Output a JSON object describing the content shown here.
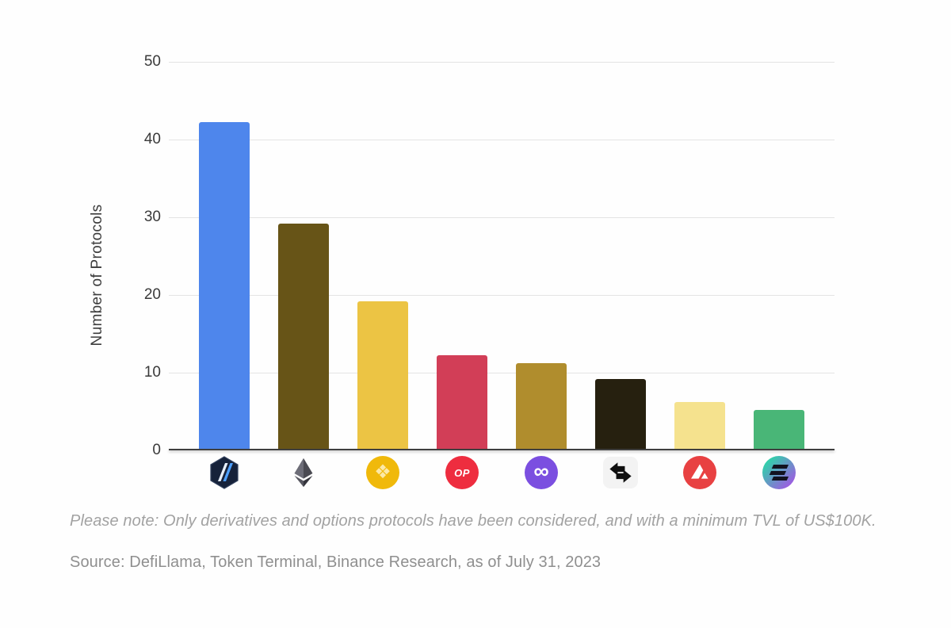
{
  "chart_data": {
    "type": "bar",
    "title": "",
    "xlabel": "",
    "ylabel": "Number of Protocols",
    "ylim": [
      0,
      50
    ],
    "yticks": [
      0,
      10,
      20,
      30,
      40,
      50
    ],
    "grid": true,
    "legend": "none",
    "categories": [
      "Arbitrum",
      "Ethereum",
      "BNB Chain",
      "Optimism",
      "Polygon",
      "zkSync Era",
      "Avalanche",
      "Solana"
    ],
    "values": [
      42,
      29,
      19,
      12,
      11,
      9,
      6,
      5
    ],
    "bar_colors": [
      "#4e86ec",
      "#675417",
      "#ecc444",
      "#d23e57",
      "#b08d2d",
      "#26200f",
      "#f5e28e",
      "#49b677"
    ],
    "icon_names": [
      "arbitrum-icon",
      "ethereum-icon",
      "bnb-chain-icon",
      "optimism-icon",
      "polygon-icon",
      "zksync-icon",
      "avalanche-icon",
      "solana-icon"
    ],
    "optimism_icon_label": "OP"
  },
  "footer": {
    "note": "Please note: Only derivatives and options protocols have been considered, and with a minimum TVL of US$100K.",
    "source": "Source: DefiLlama, Token Terminal, Binance Research, as of July 31, 2023"
  },
  "icon_colors": {
    "arbitrum_bg": "#16223a",
    "ethereum_dark": "#4a4a52",
    "bnb_bg": "#f0b90b",
    "optimism_bg": "#ee2d3f",
    "polygon_bg": "#7b4fe0",
    "zksync_fg": "#0f0f0f",
    "avalanche_bg": "#e84142",
    "solana_top": "#31d0aa",
    "solana_bottom": "#9a5fe0"
  }
}
